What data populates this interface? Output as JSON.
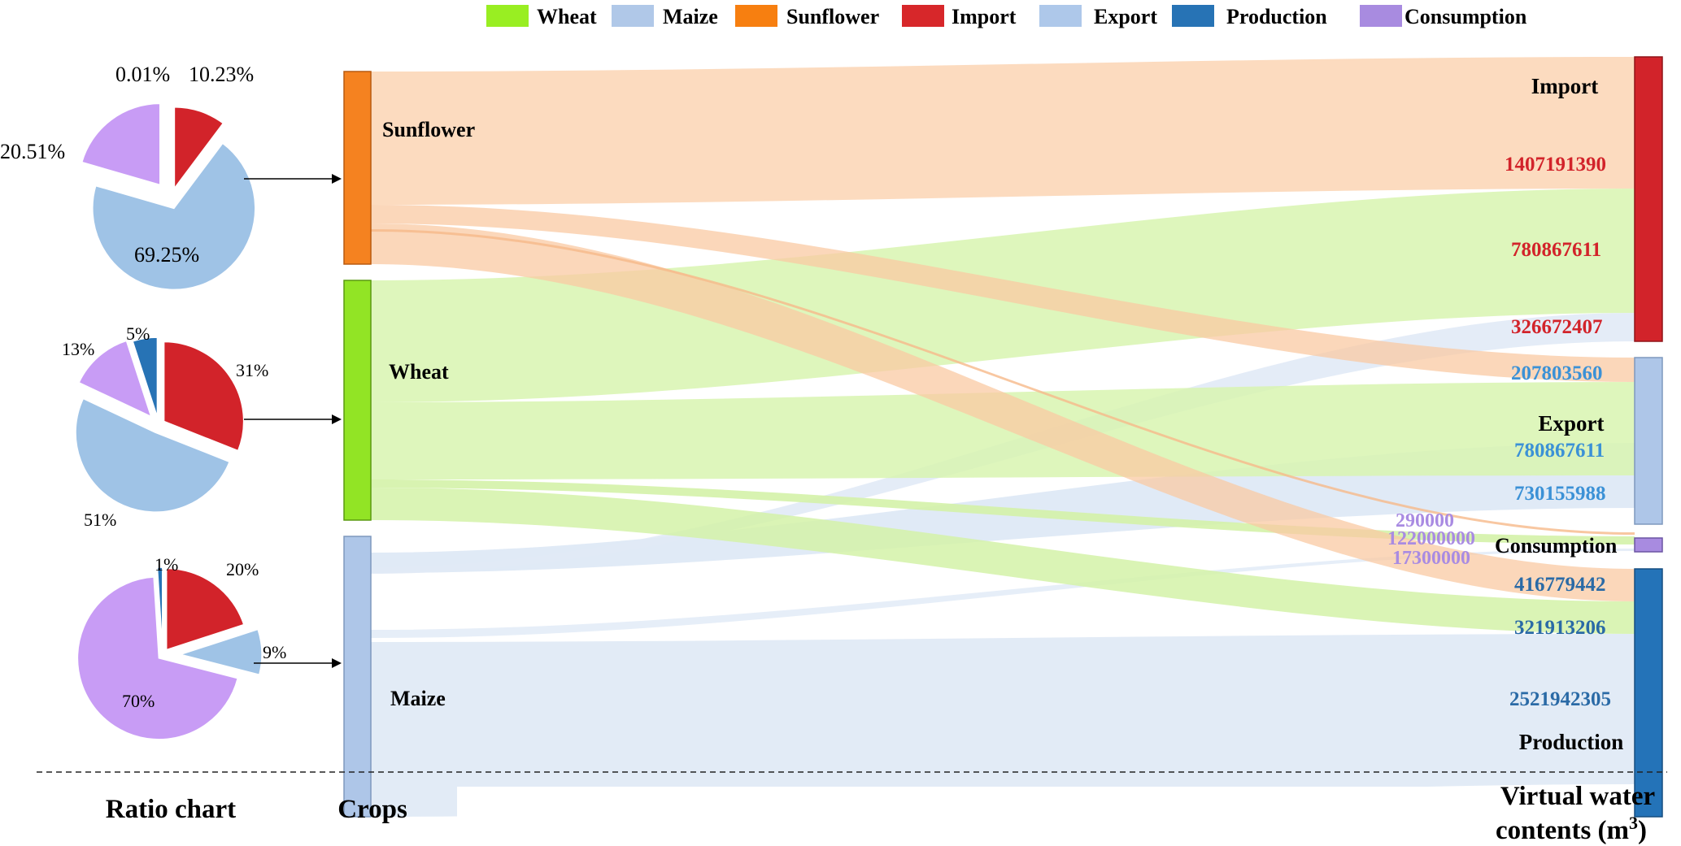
{
  "legend": [
    {
      "label": "Wheat",
      "color": "#99ee22"
    },
    {
      "label": "Maize",
      "color": "#b0c8e8"
    },
    {
      "label": "Sunflower",
      "color": "#f77f10"
    },
    {
      "label": "Import",
      "color": "#d7272a"
    },
    {
      "label": "Export",
      "color": "#aec8ea"
    },
    {
      "label": "Production",
      "color": "#2773b5"
    },
    {
      "label": "Consumption",
      "color": "#a88be0"
    }
  ],
  "colors": {
    "import": "#d2232a",
    "export": "#a7c2e6",
    "production": "#2473b8",
    "consumption": "#c89cf5",
    "sunflower": "#f58220",
    "wheat": "#92e425",
    "maize": "#aec6e8",
    "pie_export": "#9fc3e6",
    "pie_production": "#2773b5",
    "flow_sunflower": "#fcd7b8",
    "flow_wheat": "#d8f5b0",
    "flow_maize": "#dde8f5",
    "value_import": "#d2232a",
    "value_export": "#3b91d6",
    "value_production": "#2a6aa6",
    "value_consumption": "#a98be2"
  },
  "pies": [
    {
      "crop": "Sunflower",
      "slices": [
        {
          "category": "Import",
          "label": "10.23%",
          "value": 10.23
        },
        {
          "category": "Export",
          "label": "69.25%",
          "value": 69.25
        },
        {
          "category": "Consumption",
          "label": "20.51%",
          "value": 20.51
        },
        {
          "category": "Production",
          "label": "0.01%",
          "value": 0.01
        }
      ]
    },
    {
      "crop": "Wheat",
      "slices": [
        {
          "category": "Import",
          "label": "31%",
          "value": 31
        },
        {
          "category": "Export",
          "label": "51%",
          "value": 51
        },
        {
          "category": "Consumption",
          "label": "13%",
          "value": 13
        },
        {
          "category": "Production",
          "label": "5%",
          "value": 5
        }
      ]
    },
    {
      "crop": "Maize",
      "slices": [
        {
          "category": "Import",
          "label": "20%",
          "value": 20
        },
        {
          "category": "Export",
          "label": "9%",
          "value": 9
        },
        {
          "category": "Consumption",
          "label": "70%",
          "value": 70
        },
        {
          "category": "Production",
          "label": "1%",
          "value": 1
        }
      ]
    }
  ],
  "crops": [
    {
      "key": "sunflower",
      "label": "Sunflower"
    },
    {
      "key": "wheat",
      "label": "Wheat"
    },
    {
      "key": "maize",
      "label": "Maize"
    }
  ],
  "targets": [
    {
      "key": "import",
      "label": "Import",
      "values": [
        "1407191390",
        "780867611",
        "326672407"
      ]
    },
    {
      "key": "export",
      "label": "Export",
      "values": [
        "207803560",
        "780867611",
        "730155988"
      ]
    },
    {
      "key": "consumption",
      "label": "Consumption",
      "values": [
        "290000",
        "122000000",
        "17300000"
      ]
    },
    {
      "key": "production",
      "label": "Production",
      "values": [
        "416779442",
        "321913206",
        "2521942305"
      ]
    }
  ],
  "bottom_labels": {
    "ratio": "Ratio chart",
    "crops": "Crops",
    "vwc": "Virtual water",
    "vwc_line2": "contents (m",
    "vwc_sup": "3",
    "vwc_close": ")"
  }
}
